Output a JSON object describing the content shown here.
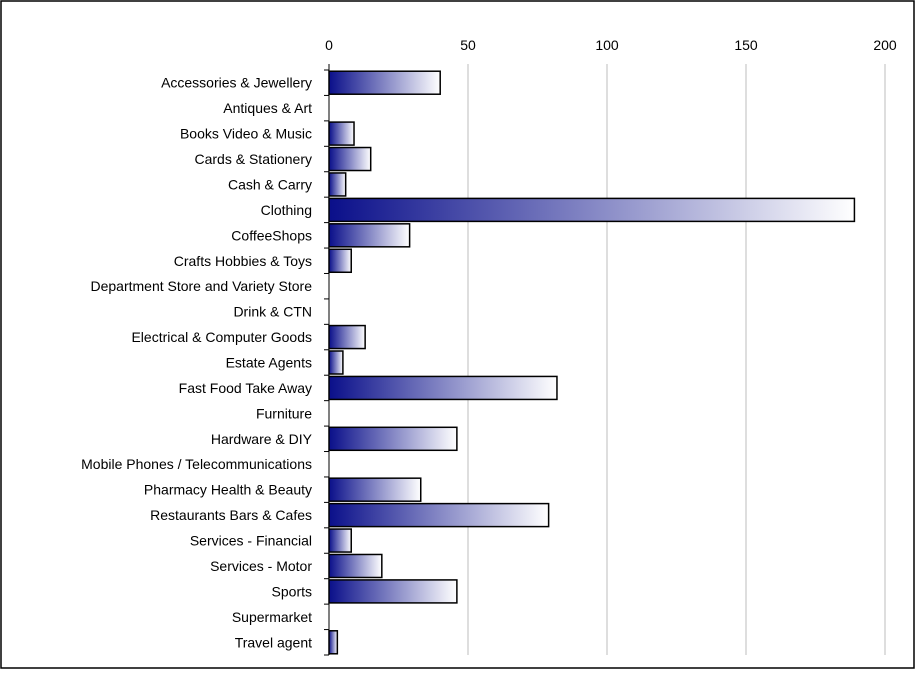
{
  "chart_data": {
    "type": "bar",
    "orientation": "horizontal",
    "title": "",
    "xlabel": "",
    "ylabel": "",
    "xlim": [
      0,
      200
    ],
    "xticks": [
      0,
      50,
      100,
      150,
      200
    ],
    "x_axis_position": "top",
    "grid": true,
    "legend": "none",
    "bar_gradient": [
      "#0a0f8a",
      "#ffffff"
    ],
    "categories": [
      "Accessories & Jewellery",
      "Antiques & Art",
      "Books Video & Music",
      "Cards & Stationery",
      "Cash & Carry",
      "Clothing",
      "CoffeeShops",
      "Crafts Hobbies & Toys",
      "Department Store and Variety Store",
      "Drink & CTN",
      "Electrical & Computer Goods",
      "Estate Agents",
      "Fast Food Take Away",
      "Furniture",
      "Hardware & DIY",
      "Mobile Phones / Telecommunications",
      "Pharmacy Health & Beauty",
      "Restaurants Bars & Cafes",
      "Services - Financial",
      "Services - Motor",
      "Sports",
      "Supermarket",
      "Travel agent"
    ],
    "values": [
      40,
      0,
      9,
      15,
      6,
      189,
      29,
      8,
      0,
      0,
      13,
      5,
      82,
      0,
      46,
      0,
      33,
      79,
      8,
      19,
      46,
      0,
      3
    ]
  }
}
